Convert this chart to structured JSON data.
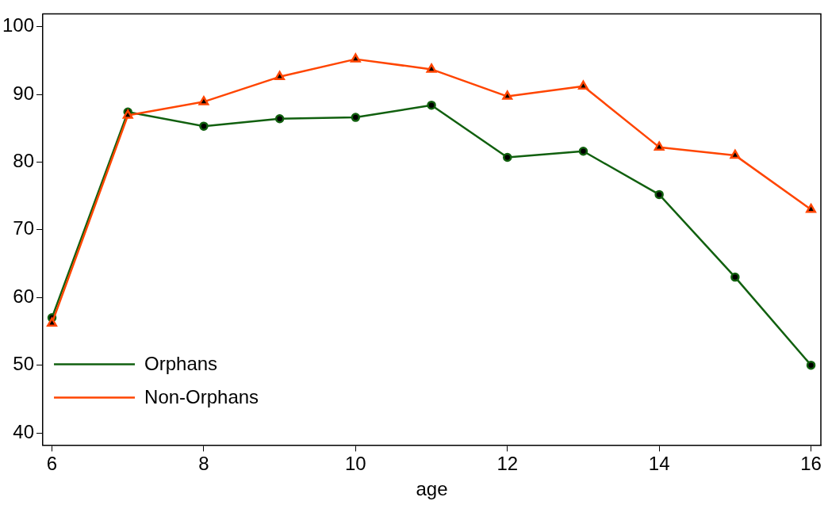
{
  "chart_data": {
    "type": "line",
    "xlabel": "age",
    "x": [
      6,
      7,
      8,
      9,
      10,
      11,
      12,
      13,
      14,
      15,
      16
    ],
    "xlim": [
      5.88,
      16.13
    ],
    "xticks": [
      6,
      8,
      10,
      12,
      14,
      16
    ],
    "ylim": [
      38.2,
      101.9
    ],
    "yticks": [
      40,
      50,
      60,
      70,
      80,
      90,
      100
    ],
    "grid": false,
    "legend": "bottom left",
    "line_style": "solid",
    "series": [
      {
        "name": "Orphans",
        "color": "#11600f",
        "marker": "circle",
        "values": [
          57.0,
          87.4,
          85.3,
          86.4,
          86.6,
          88.4,
          80.7,
          81.6,
          75.2,
          63.0,
          50.0
        ]
      },
      {
        "name": "Non-Orphans",
        "color": "#ff4500",
        "marker": "triangle",
        "values": [
          56.2,
          86.9,
          88.9,
          92.6,
          95.2,
          93.7,
          89.7,
          91.2,
          82.2,
          81.0,
          73.0
        ]
      }
    ]
  }
}
